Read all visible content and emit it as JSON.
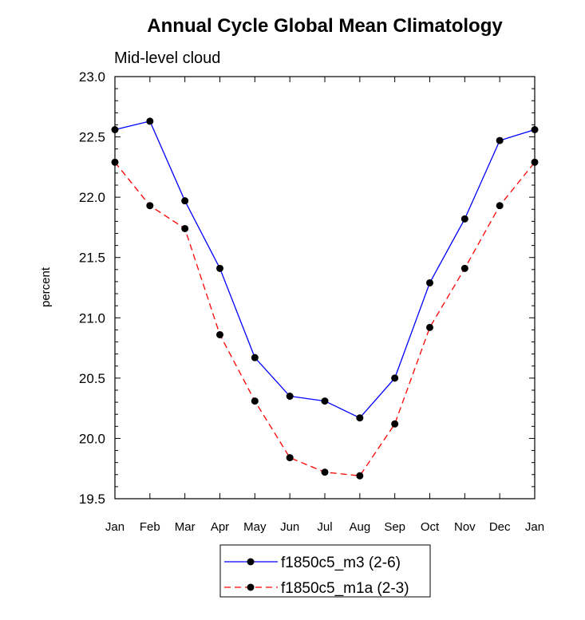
{
  "chart_data": {
    "type": "line",
    "title": "Annual Cycle Global Mean Climatology",
    "subtitle": "Mid-level cloud",
    "xlabel": "",
    "ylabel": "percent",
    "ylim": [
      19.5,
      23.0
    ],
    "yticks": [
      "19.5",
      "20.0",
      "20.5",
      "21.0",
      "21.5",
      "22.0",
      "22.5",
      "23.0"
    ],
    "categories": [
      "Jan",
      "Feb",
      "Mar",
      "Apr",
      "May",
      "Jun",
      "Jul",
      "Aug",
      "Sep",
      "Oct",
      "Nov",
      "Dec",
      "Jan"
    ],
    "legend_position": "bottom-center",
    "grid": false,
    "series": [
      {
        "name": "f1850c5_m3 (2-6)",
        "color": "#0000ff",
        "dash": "solid",
        "values": [
          22.56,
          22.63,
          21.97,
          21.41,
          20.67,
          20.35,
          20.31,
          20.17,
          20.5,
          21.29,
          21.82,
          22.47,
          22.56
        ]
      },
      {
        "name": "f1850c5_m1a (2-3)",
        "color": "#ff0000",
        "dash": "dashed",
        "values": [
          22.29,
          21.93,
          21.74,
          20.86,
          20.31,
          19.84,
          19.72,
          19.69,
          20.12,
          20.92,
          21.41,
          21.93,
          22.29
        ]
      }
    ]
  }
}
